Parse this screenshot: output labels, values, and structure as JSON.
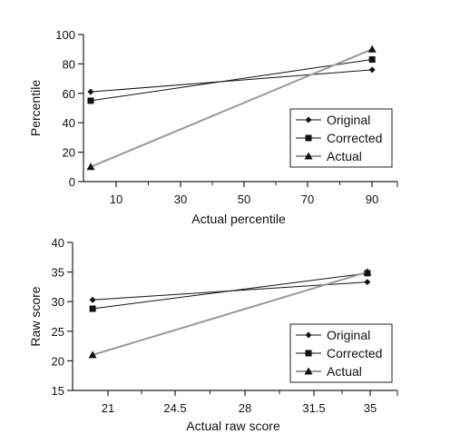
{
  "chart_data": [
    {
      "type": "line",
      "xlabel": "Actual percentile",
      "ylabel": "Percentile",
      "x_ticks": [
        "10",
        "30",
        "50",
        "70",
        "90"
      ],
      "y_ticks": [
        "0",
        "20",
        "40",
        "60",
        "80",
        "100"
      ],
      "xlim": [
        8,
        95
      ],
      "ylim": [
        0,
        100
      ],
      "x": [
        10,
        88
      ],
      "series": [
        {
          "name": "Original",
          "marker": "diamond",
          "color": "#111111",
          "values": [
            61,
            76
          ]
        },
        {
          "name": "Corrected",
          "marker": "square",
          "color": "#111111",
          "values": [
            55,
            83
          ]
        },
        {
          "name": "Actual",
          "marker": "triangle",
          "color": "#999999",
          "values": [
            10,
            90
          ]
        }
      ],
      "legend": "right-inside"
    },
    {
      "type": "line",
      "xlabel": "Actual raw score",
      "ylabel": "Raw score",
      "x_ticks": [
        "21",
        "24.5",
        "28",
        "31.5",
        "35"
      ],
      "y_ticks": [
        "15",
        "20",
        "25",
        "30",
        "35",
        "40"
      ],
      "xlim": [
        20,
        36.2
      ],
      "ylim": [
        15,
        40
      ],
      "x": [
        21,
        34.7
      ],
      "series": [
        {
          "name": "Original",
          "marker": "diamond",
          "color": "#111111",
          "values": [
            30.3,
            33.3
          ]
        },
        {
          "name": "Corrected",
          "marker": "square",
          "color": "#111111",
          "values": [
            28.8,
            34.8
          ]
        },
        {
          "name": "Actual",
          "marker": "triangle",
          "color": "#999999",
          "values": [
            21,
            35
          ]
        }
      ],
      "legend": "right-inside"
    }
  ]
}
